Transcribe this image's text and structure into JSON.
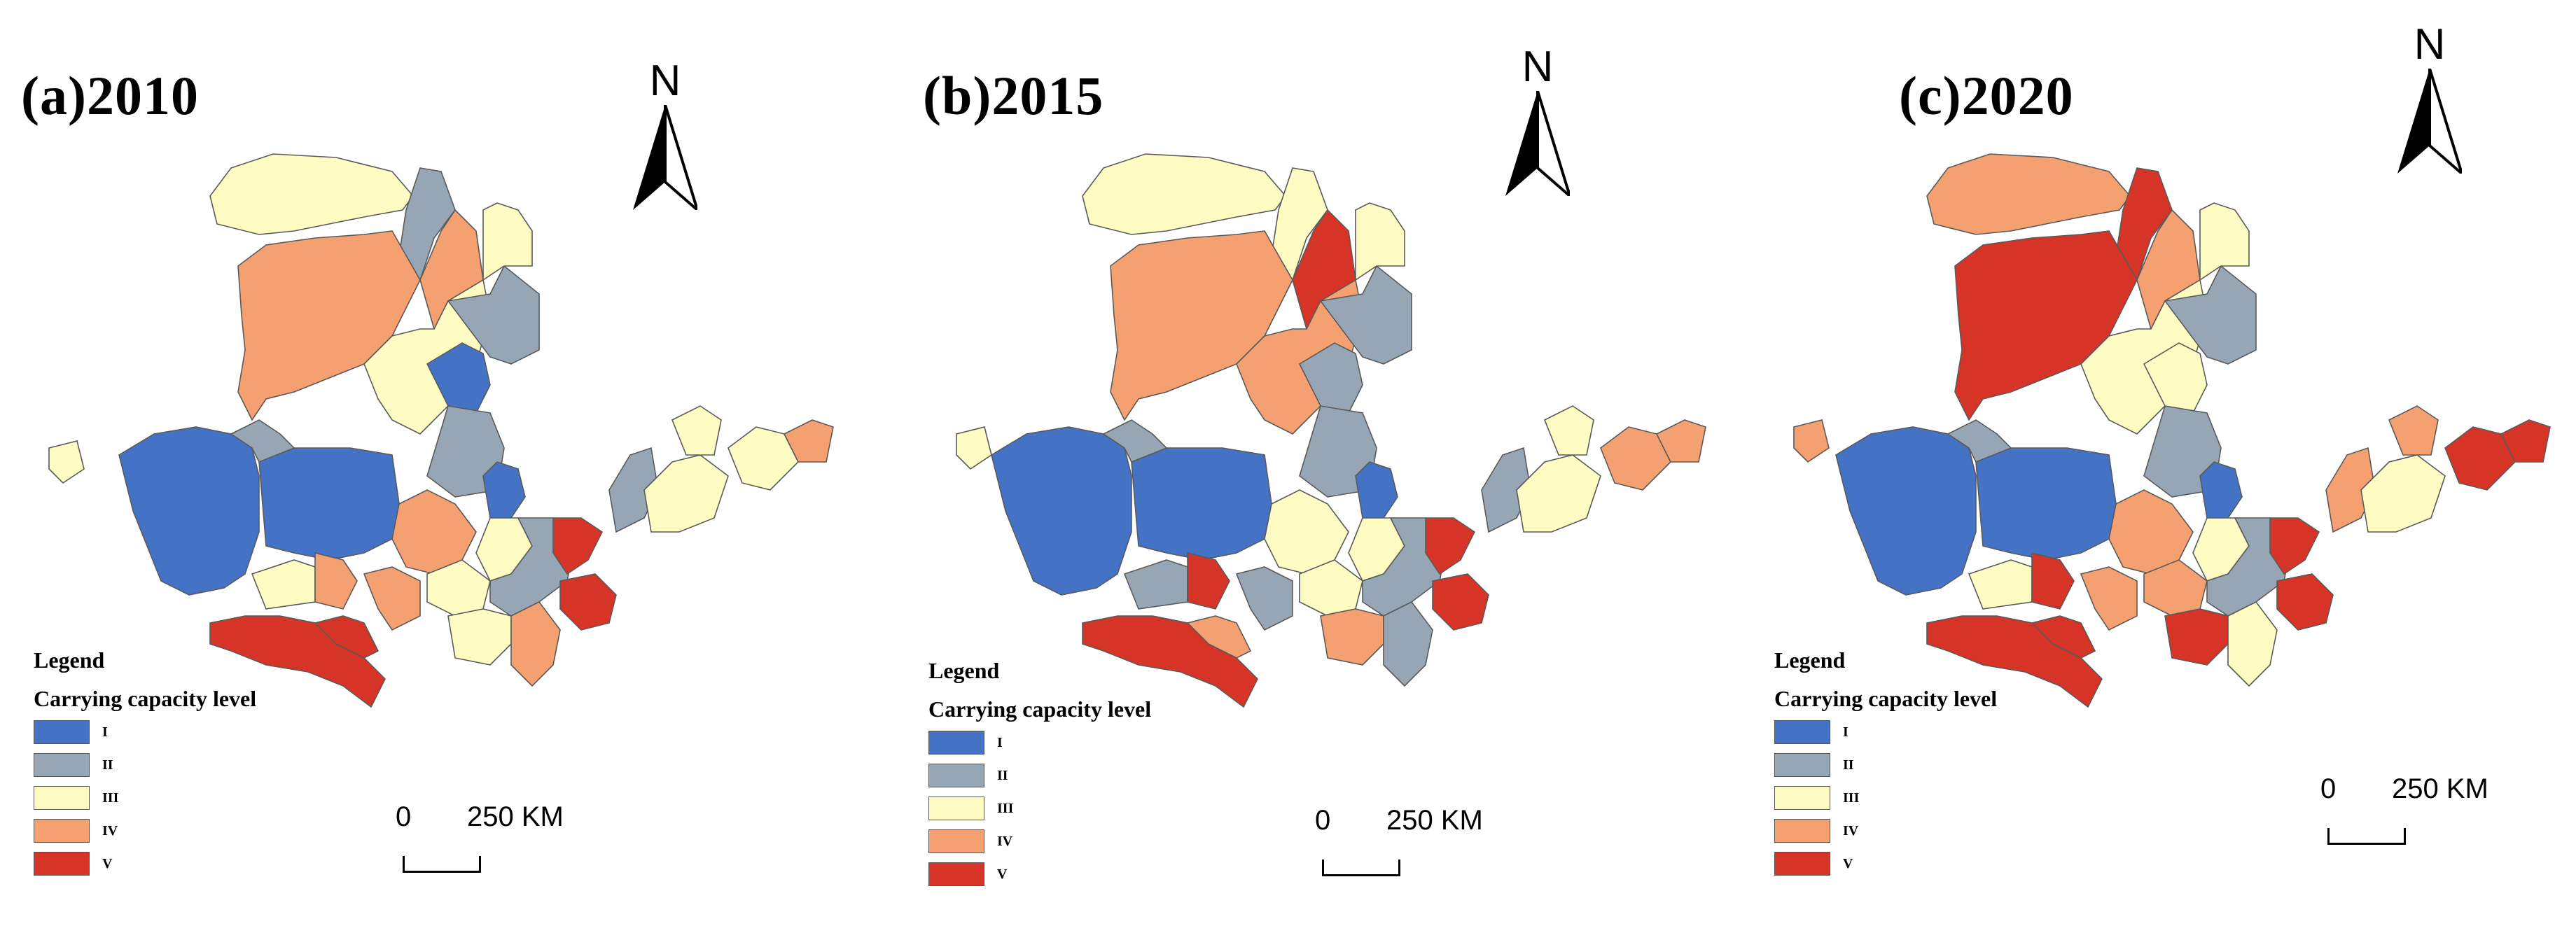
{
  "colors": {
    "I": "#4472c4",
    "II": "#97a6b5",
    "III": "#fefcc2",
    "IV": "#f4a071",
    "V": "#d63427"
  },
  "panels": [
    {
      "id": "a",
      "title": "(a)2010",
      "north_label": "N",
      "legend": {
        "title": "Legend",
        "subtitle": "Carrying capacity level",
        "items": [
          {
            "level": "I",
            "label": "I"
          },
          {
            "level": "II",
            "label": "II"
          },
          {
            "level": "III",
            "label": "III"
          },
          {
            "level": "IV",
            "label": "IV"
          },
          {
            "level": "V",
            "label": "V"
          }
        ]
      },
      "scale": {
        "zero": "0",
        "distance": "250 KM"
      },
      "regions": [
        "III",
        "II",
        "IV",
        "IV",
        "III",
        "I",
        "II",
        "III",
        "II",
        "I",
        "I",
        "II",
        "III",
        "IV",
        "V",
        "V",
        "I",
        "IV",
        "III",
        "III",
        "IV",
        "III",
        "II",
        "IV",
        "V",
        "V",
        "II",
        "III",
        "III",
        "III",
        "IV"
      ]
    },
    {
      "id": "b",
      "title": "(b)2015",
      "north_label": "N",
      "legend": {
        "title": "Legend",
        "subtitle": "Carrying capacity level",
        "items": [
          {
            "level": "I",
            "label": "I"
          },
          {
            "level": "II",
            "label": "II"
          },
          {
            "level": "III",
            "label": "III"
          },
          {
            "level": "IV",
            "label": "IV"
          },
          {
            "level": "V",
            "label": "V"
          }
        ]
      },
      "scale": {
        "zero": "0",
        "distance": "250 KM"
      },
      "regions": [
        "III",
        "III",
        "IV",
        "V",
        "IV",
        "II",
        "II",
        "III",
        "II",
        "I",
        "I",
        "II",
        "II",
        "V",
        "V",
        "IV",
        "I",
        "III",
        "III",
        "IV",
        "II",
        "III",
        "II",
        "II",
        "V",
        "V",
        "II",
        "III",
        "III",
        "IV",
        "IV"
      ]
    },
    {
      "id": "c",
      "title": "(c)2020",
      "north_label": "N",
      "legend": {
        "title": "Legend",
        "subtitle": "Carrying capacity level",
        "items": [
          {
            "level": "I",
            "label": "I"
          },
          {
            "level": "II",
            "label": "II"
          },
          {
            "level": "III",
            "label": "III"
          },
          {
            "level": "IV",
            "label": "IV"
          },
          {
            "level": "V",
            "label": "V"
          }
        ]
      },
      "scale": {
        "zero": "0",
        "distance": "250 KM"
      },
      "regions": [
        "IV",
        "V",
        "V",
        "IV",
        "III",
        "III",
        "II",
        "III",
        "II",
        "I",
        "I",
        "II",
        "III",
        "V",
        "V",
        "V",
        "I",
        "IV",
        "IV",
        "V",
        "IV",
        "III",
        "II",
        "III",
        "V",
        "V",
        "IV",
        "III",
        "IV",
        "V",
        "V"
      ]
    }
  ]
}
